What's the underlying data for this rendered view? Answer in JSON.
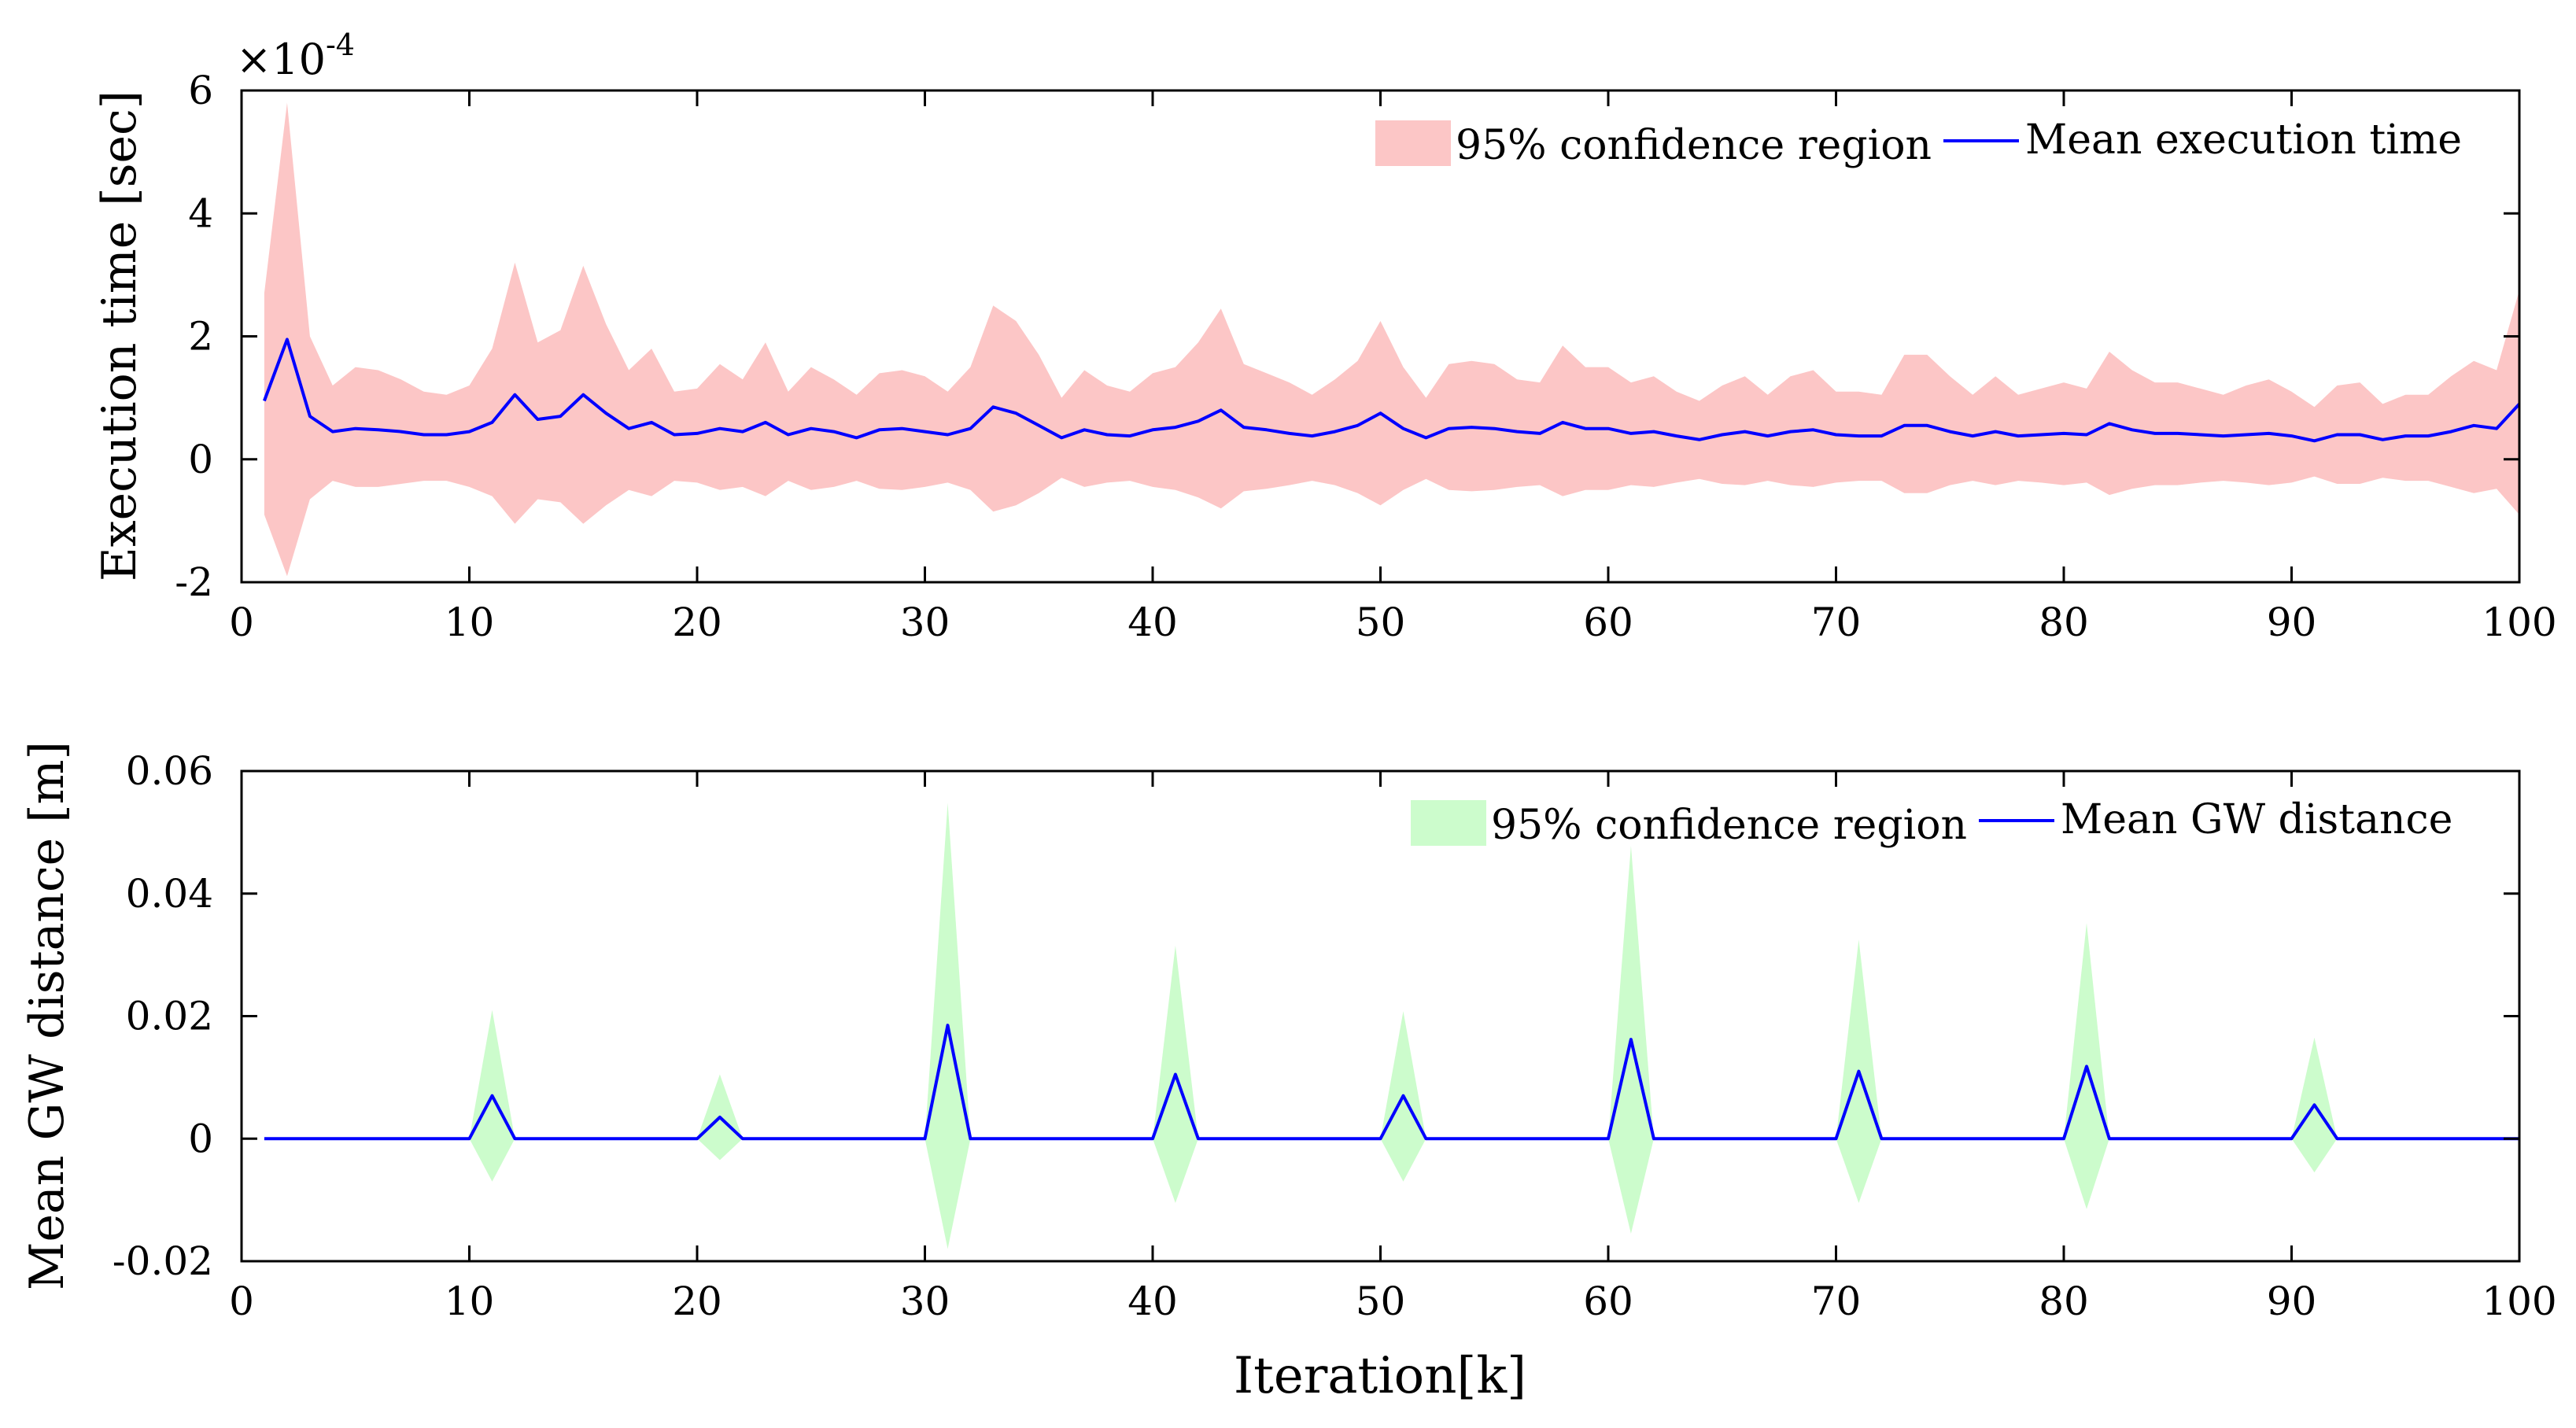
{
  "chart_data": [
    {
      "type": "line",
      "title": "",
      "xlabel": "",
      "ylabel": "Execution time [sec]",
      "y_exponent_label": "×10",
      "y_exponent_power": "-4",
      "y_scale": 0.0001,
      "xlim": [
        0,
        100
      ],
      "ylim": [
        -2,
        6
      ],
      "xticks": [
        0,
        10,
        20,
        30,
        40,
        50,
        60,
        70,
        80,
        90,
        100
      ],
      "xtick_labels": [
        "0",
        "10",
        "20",
        "30",
        "40",
        "50",
        "60",
        "70",
        "80",
        "90",
        "100"
      ],
      "yticks": [
        -2,
        0,
        2,
        4,
        6
      ],
      "ytick_labels": [
        "-2",
        "0",
        "2",
        "4",
        "6"
      ],
      "legend": {
        "position": "top-right",
        "band_label": "95% confidence region",
        "line_label": "Mean execution time"
      },
      "colors": {
        "band": "#fcc6c6",
        "line": "#0000ff"
      },
      "x": [
        1,
        2,
        3,
        4,
        5,
        6,
        7,
        8,
        9,
        10,
        11,
        12,
        13,
        14,
        15,
        16,
        17,
        18,
        19,
        20,
        21,
        22,
        23,
        24,
        25,
        26,
        27,
        28,
        29,
        30,
        31,
        32,
        33,
        34,
        35,
        36,
        37,
        38,
        39,
        40,
        41,
        42,
        43,
        44,
        45,
        46,
        47,
        48,
        49,
        50,
        51,
        52,
        53,
        54,
        55,
        56,
        57,
        58,
        59,
        60,
        61,
        62,
        63,
        64,
        65,
        66,
        67,
        68,
        69,
        70,
        71,
        72,
        73,
        74,
        75,
        76,
        77,
        78,
        79,
        80,
        81,
        82,
        83,
        84,
        85,
        86,
        87,
        88,
        89,
        90,
        91,
        92,
        93,
        94,
        95,
        96,
        97,
        98,
        99,
        100
      ],
      "series": [
        {
          "name": "Mean execution time",
          "role": "mean",
          "values": [
            0.95,
            1.95,
            0.7,
            0.45,
            0.5,
            0.48,
            0.45,
            0.4,
            0.4,
            0.45,
            0.6,
            1.05,
            0.65,
            0.7,
            1.05,
            0.75,
            0.5,
            0.6,
            0.4,
            0.42,
            0.5,
            0.45,
            0.6,
            0.4,
            0.5,
            0.45,
            0.35,
            0.48,
            0.5,
            0.45,
            0.4,
            0.5,
            0.85,
            0.75,
            0.55,
            0.35,
            0.48,
            0.4,
            0.38,
            0.48,
            0.52,
            0.62,
            0.8,
            0.52,
            0.48,
            0.42,
            0.38,
            0.45,
            0.55,
            0.75,
            0.5,
            0.35,
            0.5,
            0.52,
            0.5,
            0.45,
            0.42,
            0.6,
            0.5,
            0.5,
            0.42,
            0.45,
            0.38,
            0.32,
            0.4,
            0.45,
            0.38,
            0.45,
            0.48,
            0.4,
            0.38,
            0.38,
            0.55,
            0.55,
            0.45,
            0.38,
            0.45,
            0.38,
            0.4,
            0.42,
            0.4,
            0.58,
            0.48,
            0.42,
            0.42,
            0.4,
            0.38,
            0.4,
            0.42,
            0.38,
            0.3,
            0.4,
            0.4,
            0.32,
            0.38,
            0.38,
            0.45,
            0.55,
            0.5,
            0.9
          ]
        },
        {
          "name": "95% confidence region upper",
          "role": "band_upper",
          "values": [
            2.7,
            5.8,
            2,
            1.2,
            1.5,
            1.45,
            1.3,
            1.1,
            1.05,
            1.2,
            1.8,
            3.2,
            1.9,
            2.1,
            3.15,
            2.2,
            1.45,
            1.8,
            1.1,
            1.15,
            1.55,
            1.3,
            1.9,
            1.1,
            1.5,
            1.3,
            1.05,
            1.4,
            1.45,
            1.35,
            1.1,
            1.5,
            2.5,
            2.25,
            1.7,
            1,
            1.45,
            1.2,
            1.1,
            1.4,
            1.5,
            1.9,
            2.45,
            1.55,
            1.4,
            1.25,
            1.05,
            1.3,
            1.6,
            2.25,
            1.5,
            1,
            1.55,
            1.6,
            1.55,
            1.3,
            1.25,
            1.85,
            1.5,
            1.5,
            1.25,
            1.35,
            1.1,
            0.95,
            1.2,
            1.35,
            1.05,
            1.35,
            1.45,
            1.1,
            1.1,
            1.05,
            1.7,
            1.7,
            1.35,
            1.05,
            1.35,
            1.05,
            1.15,
            1.25,
            1.15,
            1.75,
            1.45,
            1.25,
            1.25,
            1.15,
            1.05,
            1.2,
            1.3,
            1.1,
            0.85,
            1.2,
            1.25,
            0.9,
            1.05,
            1.05,
            1.35,
            1.6,
            1.45,
            2.75
          ]
        },
        {
          "name": "95% confidence region lower",
          "role": "band_lower",
          "values": [
            -0.9,
            -1.9,
            -0.65,
            -0.35,
            -0.45,
            -0.45,
            -0.4,
            -0.35,
            -0.35,
            -0.45,
            -0.6,
            -1.05,
            -0.65,
            -0.7,
            -1.05,
            -0.75,
            -0.5,
            -0.6,
            -0.35,
            -0.38,
            -0.5,
            -0.45,
            -0.6,
            -0.35,
            -0.5,
            -0.45,
            -0.35,
            -0.48,
            -0.5,
            -0.45,
            -0.38,
            -0.5,
            -0.85,
            -0.75,
            -0.55,
            -0.3,
            -0.45,
            -0.38,
            -0.35,
            -0.45,
            -0.5,
            -0.62,
            -0.8,
            -0.52,
            -0.48,
            -0.42,
            -0.35,
            -0.42,
            -0.55,
            -0.75,
            -0.5,
            -0.32,
            -0.5,
            -0.52,
            -0.5,
            -0.45,
            -0.42,
            -0.6,
            -0.5,
            -0.5,
            -0.42,
            -0.45,
            -0.38,
            -0.32,
            -0.4,
            -0.42,
            -0.35,
            -0.42,
            -0.45,
            -0.38,
            -0.35,
            -0.35,
            -0.55,
            -0.55,
            -0.42,
            -0.35,
            -0.42,
            -0.35,
            -0.38,
            -0.42,
            -0.38,
            -0.58,
            -0.48,
            -0.42,
            -0.42,
            -0.38,
            -0.35,
            -0.38,
            -0.42,
            -0.38,
            -0.28,
            -0.4,
            -0.4,
            -0.3,
            -0.35,
            -0.35,
            -0.45,
            -0.55,
            -0.48,
            -0.9
          ]
        }
      ]
    },
    {
      "type": "line",
      "title": "",
      "xlabel": "Iteration[k]",
      "ylabel": "Mean GW distance [m]",
      "xlim": [
        0,
        100
      ],
      "ylim": [
        -0.02,
        0.06
      ],
      "xticks": [
        0,
        10,
        20,
        30,
        40,
        50,
        60,
        70,
        80,
        90,
        100
      ],
      "xtick_labels": [
        "0",
        "10",
        "20",
        "30",
        "40",
        "50",
        "60",
        "70",
        "80",
        "90",
        "100"
      ],
      "yticks": [
        -0.02,
        0,
        0.02,
        0.04,
        0.06
      ],
      "ytick_labels": [
        "-0.02",
        "0",
        "0.02",
        "0.04",
        "0.06"
      ],
      "legend": {
        "position": "top-right",
        "band_label": "95% confidence region",
        "line_label": "Mean GW distance"
      },
      "colors": {
        "band": "#ccfccc",
        "line": "#0000ff"
      },
      "x": [
        1,
        10,
        11,
        12,
        20,
        21,
        22,
        30,
        31,
        32,
        40,
        41,
        42,
        50,
        51,
        52,
        60,
        61,
        62,
        70,
        71,
        72,
        80,
        81,
        82,
        90,
        91,
        92,
        100
      ],
      "series": [
        {
          "name": "Mean GW distance",
          "role": "mean",
          "values": [
            0,
            0,
            0.007,
            0,
            0,
            0.0035,
            0,
            0,
            0.0185,
            0,
            0,
            0.0105,
            0,
            0,
            0.007,
            0,
            0,
            0.0162,
            0,
            0,
            0.011,
            0,
            0,
            0.0118,
            0,
            0,
            0.0055,
            0,
            0
          ]
        },
        {
          "name": "95% confidence region upper",
          "role": "band_upper",
          "values": [
            0,
            0,
            0.021,
            0,
            0,
            0.0105,
            0,
            0,
            0.0548,
            0,
            0,
            0.0315,
            0,
            0,
            0.0208,
            0,
            0,
            0.0478,
            0,
            0,
            0.0325,
            0,
            0,
            0.0352,
            0,
            0,
            0.0165,
            0,
            0
          ]
        },
        {
          "name": "95% confidence region lower",
          "role": "band_lower",
          "values": [
            0,
            0,
            -0.007,
            0,
            0,
            -0.0035,
            0,
            0,
            -0.018,
            0,
            0,
            -0.0105,
            0,
            0,
            -0.007,
            0,
            0,
            -0.0155,
            0,
            0,
            -0.0105,
            0,
            0,
            -0.0115,
            0,
            0,
            -0.0055,
            0,
            0
          ]
        }
      ]
    }
  ]
}
